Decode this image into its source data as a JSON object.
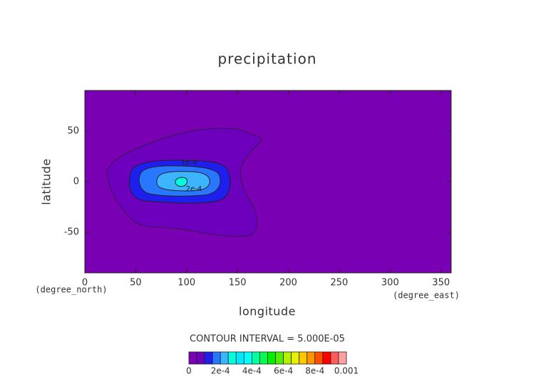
{
  "chart_data": {
    "type": "contour",
    "title": "precipitation",
    "xlabel": "longitude",
    "ylabel": "latitude",
    "xunit": "(degree_east)",
    "yunit": "(degree_north)",
    "xlim": [
      0,
      360
    ],
    "ylim": [
      -90,
      90
    ],
    "xticks": [
      0,
      50,
      100,
      150,
      200,
      250,
      300,
      350
    ],
    "yticks": [
      -50,
      0,
      50
    ],
    "note": "CONTOUR INTERVAL = 5.000E-05",
    "contour_labels": [
      {
        "value": 0.0001,
        "label": "1e-4"
      },
      {
        "value": 0.0002,
        "label": "2e-4"
      }
    ],
    "colorbar": {
      "levels": [
        0,
        5e-05,
        0.0001,
        0.00015,
        0.0002,
        0.00025,
        0.0003,
        0.00035,
        0.0004,
        0.00045,
        0.0005,
        0.00055,
        0.0006,
        0.00065,
        0.0007,
        0.00075,
        0.0008,
        0.00085,
        0.0009,
        0.00095,
        0.001
      ],
      "colors": [
        "#7a00b4",
        "#6c00bc",
        "#1e1eee",
        "#2878ff",
        "#3cb4ff",
        "#00ffdc",
        "#00e8ff",
        "#00ffff",
        "#00ffa0",
        "#00ff50",
        "#00f000",
        "#50f000",
        "#b4f000",
        "#e6f000",
        "#ffc800",
        "#ff9600",
        "#ff5000",
        "#ff0000",
        "#ff5a5a",
        "#ffa0a0"
      ],
      "ticks": [
        0,
        {
          "value": 0.0002,
          "label": "2e-4"
        },
        {
          "value": 0.0004,
          "label": "4e-4"
        },
        {
          "value": 0.0006,
          "label": "6e-4"
        },
        {
          "value": 0.0008,
          "label": "8e-4"
        },
        0.001
      ]
    }
  }
}
